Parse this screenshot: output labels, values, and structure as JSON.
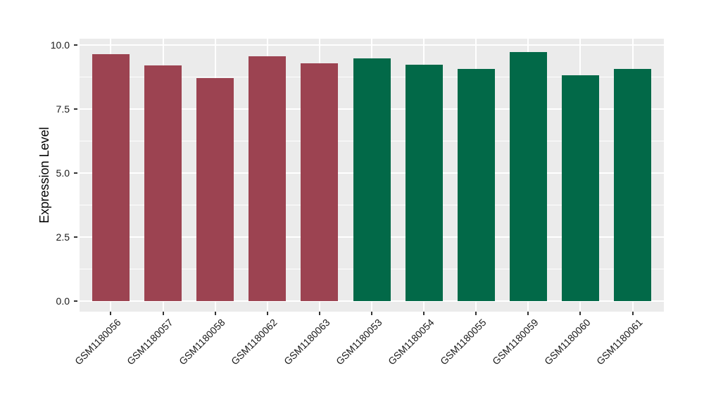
{
  "chart_data": {
    "type": "bar",
    "title": "",
    "ylabel": "Expression Level",
    "xlabel": "",
    "ylim": [
      0,
      10
    ],
    "y_major_ticks": [
      0,
      2.5,
      5,
      7.5,
      10
    ],
    "y_tick_labels": [
      "0.0",
      "2.5",
      "5.0",
      "7.5",
      "10.0"
    ],
    "y_minor_ticks": [
      1.25,
      3.75,
      6.25,
      8.75
    ],
    "categories": [
      "GSM1180056",
      "GSM1180057",
      "GSM1180058",
      "GSM1180062",
      "GSM1180063",
      "GSM1180053",
      "GSM1180054",
      "GSM1180055",
      "GSM1180059",
      "GSM1180060",
      "GSM1180061"
    ],
    "values": [
      9.65,
      9.2,
      8.72,
      9.56,
      9.28,
      9.48,
      9.23,
      9.07,
      9.73,
      8.83,
      9.07
    ],
    "groups": [
      "red",
      "red",
      "red",
      "red",
      "red",
      "green",
      "green",
      "green",
      "green",
      "green",
      "green"
    ],
    "group_colors": {
      "red": "#9C4351",
      "green": "#026948"
    },
    "panel_background": "#EBEBEB",
    "grid_color": "#FFFFFF",
    "tick_mark_color": "#333333",
    "axis_text_color": "#1A1A1A",
    "x_label_rotation_deg": 45,
    "legend": "none",
    "grid": true
  }
}
